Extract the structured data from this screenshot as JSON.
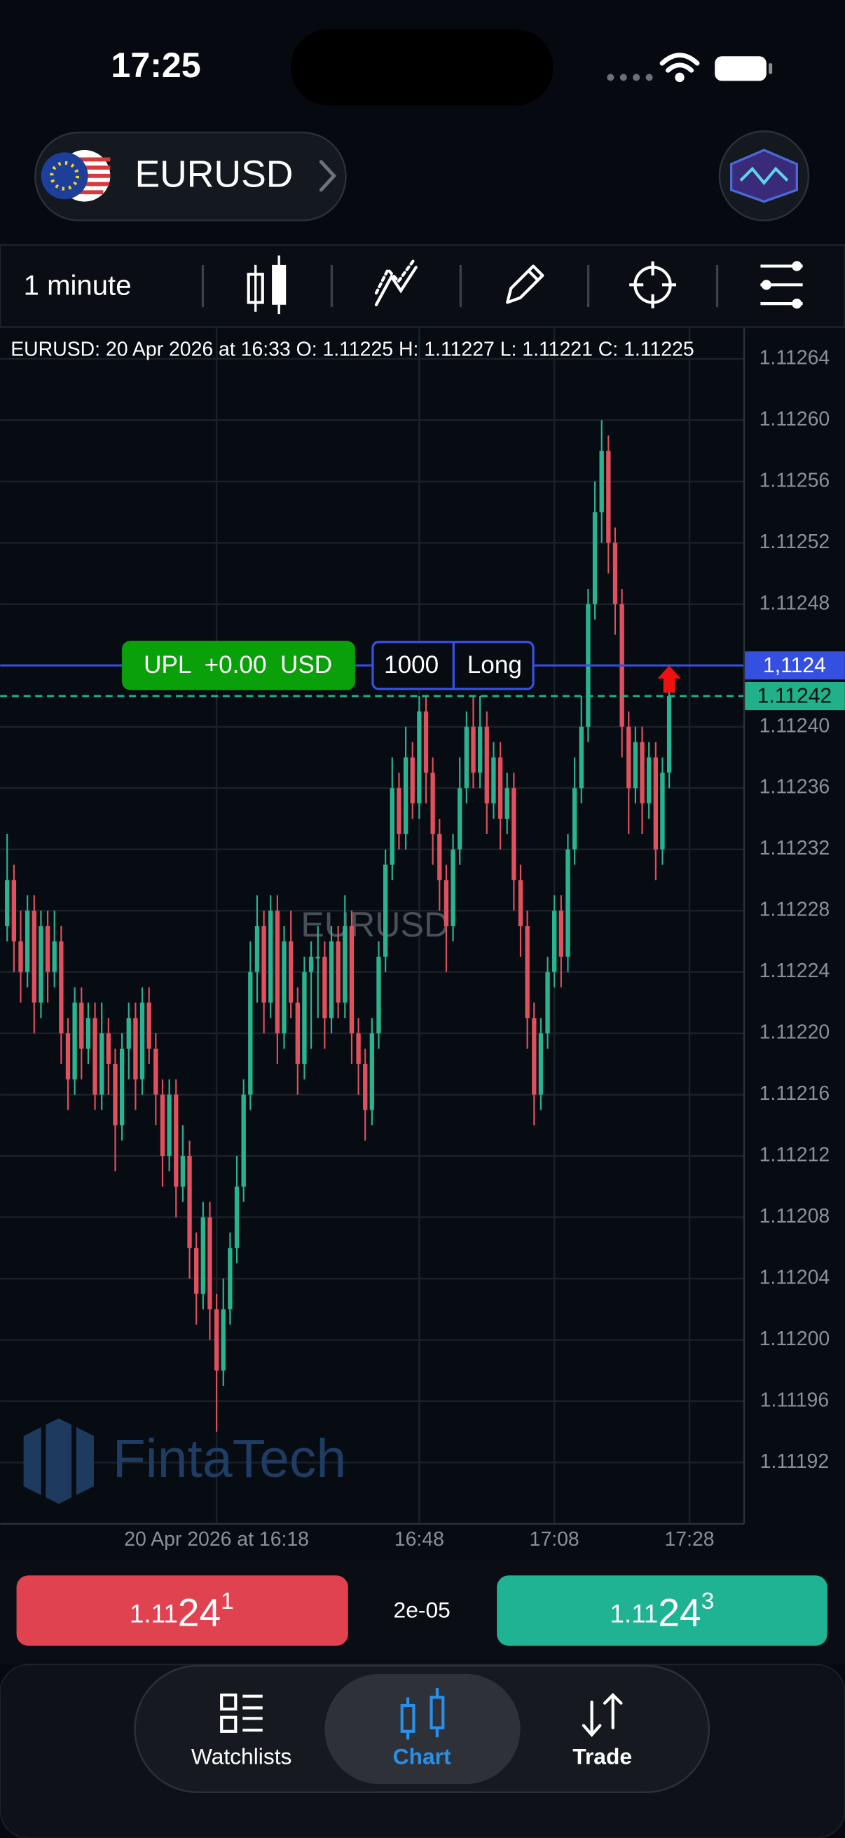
{
  "status_bar": {
    "time": "17:25"
  },
  "header": {
    "symbol": "EURUSD"
  },
  "toolbar": {
    "interval": "1 minute"
  },
  "chart_data": {
    "type": "candlestick",
    "title": "EURUSD: 20 Apr 2026 at 16:33 O: 1.11225 H: 1.11227 L: 1.11221 C: 1.11225",
    "watermark": "EURUSD",
    "logo": "FintaTech",
    "up_color": "#2ab391",
    "down_color": "#e0505e",
    "grid": true,
    "ylim": [
      1.11188,
      1.11266
    ],
    "yticks": [
      1.11264,
      {
        "value": 1.1126,
        "label": "1.11260"
      },
      1.11256,
      1.11252,
      1.11248,
      {
        "value": 1.1124,
        "label": "1.11240"
      },
      1.11236,
      1.11232,
      1.11228,
      1.11224,
      {
        "value": 1.1122,
        "label": "1.11220"
      },
      1.11216,
      1.11212,
      1.11208,
      1.11204,
      {
        "value": 1.112,
        "label": "1.11200"
      },
      1.11196,
      1.11192
    ],
    "xticks": [
      {
        "value": "16:18",
        "label": "20 Apr 2026 at 16:18"
      },
      "16:48",
      "17:08",
      "17:28"
    ],
    "x": [
      "15:47",
      "15:48",
      "15:49",
      "15:50",
      "15:51",
      "15:52",
      "15:53",
      "15:54",
      "15:55",
      "15:56",
      "15:57",
      "15:58",
      "15:59",
      "16:00",
      "16:01",
      "16:02",
      "16:03",
      "16:04",
      "16:05",
      "16:06",
      "16:07",
      "16:08",
      "16:09",
      "16:10",
      "16:11",
      "16:12",
      "16:13",
      "16:14",
      "16:15",
      "16:16",
      "16:17",
      "16:18",
      "16:19",
      "16:20",
      "16:21",
      "16:22",
      "16:23",
      "16:24",
      "16:25",
      "16:26",
      "16:27",
      "16:28",
      "16:29",
      "16:30",
      "16:31",
      "16:32",
      "16:33",
      "16:34",
      "16:35",
      "16:36",
      "16:37",
      "16:38",
      "16:39",
      "16:40",
      "16:41",
      "16:42",
      "16:43",
      "16:44",
      "16:45",
      "16:46",
      "16:47",
      "16:48",
      "16:49",
      "16:50",
      "16:51",
      "16:52",
      "16:53",
      "16:54",
      "16:55",
      "16:56",
      "16:57",
      "16:58",
      "16:59",
      "17:00",
      "17:01",
      "17:02",
      "17:03",
      "17:04",
      "17:05",
      "17:06",
      "17:07",
      "17:08",
      "17:09",
      "17:10",
      "17:11",
      "17:12",
      "17:13",
      "17:14",
      "17:15",
      "17:16",
      "17:17",
      "17:18",
      "17:19",
      "17:20",
      "17:21",
      "17:22",
      "17:23",
      "17:24",
      "17:25"
    ],
    "ohlc": [
      [
        1.11227,
        1.11233,
        1.11226,
        1.1123
      ],
      [
        1.1123,
        1.11231,
        1.11224,
        1.11226
      ],
      [
        1.11226,
        1.11228,
        1.11222,
        1.11224
      ],
      [
        1.11224,
        1.11229,
        1.11223,
        1.11228
      ],
      [
        1.11228,
        1.11229,
        1.1122,
        1.11222
      ],
      [
        1.11222,
        1.11228,
        1.11221,
        1.11227
      ],
      [
        1.11227,
        1.11228,
        1.11222,
        1.11224
      ],
      [
        1.11224,
        1.11228,
        1.11223,
        1.11226
      ],
      [
        1.11226,
        1.11227,
        1.11218,
        1.1122
      ],
      [
        1.1122,
        1.11221,
        1.11215,
        1.11217
      ],
      [
        1.11217,
        1.11223,
        1.11216,
        1.11222
      ],
      [
        1.11222,
        1.11223,
        1.11217,
        1.11219
      ],
      [
        1.11219,
        1.11222,
        1.11218,
        1.11221
      ],
      [
        1.11221,
        1.11222,
        1.11215,
        1.11216
      ],
      [
        1.11216,
        1.11222,
        1.11215,
        1.1122
      ],
      [
        1.1122,
        1.11221,
        1.11216,
        1.11218
      ],
      [
        1.11218,
        1.11219,
        1.11211,
        1.11214
      ],
      [
        1.11214,
        1.1122,
        1.11213,
        1.11219
      ],
      [
        1.11219,
        1.11222,
        1.11217,
        1.11221
      ],
      [
        1.11221,
        1.11222,
        1.11215,
        1.11217
      ],
      [
        1.11217,
        1.11223,
        1.11216,
        1.11222
      ],
      [
        1.11222,
        1.11223,
        1.11218,
        1.11219
      ],
      [
        1.11219,
        1.1122,
        1.11214,
        1.11216
      ],
      [
        1.11216,
        1.11217,
        1.1121,
        1.11212
      ],
      [
        1.11212,
        1.11217,
        1.11211,
        1.11216
      ],
      [
        1.11216,
        1.11217,
        1.11208,
        1.1121
      ],
      [
        1.1121,
        1.11214,
        1.11209,
        1.11212
      ],
      [
        1.11212,
        1.11213,
        1.11204,
        1.11206
      ],
      [
        1.11206,
        1.11207,
        1.11201,
        1.11203
      ],
      [
        1.11203,
        1.11209,
        1.11202,
        1.11208
      ],
      [
        1.11208,
        1.11209,
        1.112,
        1.11202
      ],
      [
        1.11202,
        1.11203,
        1.11194,
        1.11198
      ],
      [
        1.11198,
        1.11204,
        1.11197,
        1.11202
      ],
      [
        1.11202,
        1.11207,
        1.11201,
        1.11206
      ],
      [
        1.11206,
        1.11212,
        1.11205,
        1.1121
      ],
      [
        1.1121,
        1.11217,
        1.11209,
        1.11216
      ],
      [
        1.11216,
        1.11226,
        1.11215,
        1.11224
      ],
      [
        1.11224,
        1.11229,
        1.11222,
        1.11227
      ],
      [
        1.11227,
        1.11228,
        1.1122,
        1.11222
      ],
      [
        1.11222,
        1.11229,
        1.11221,
        1.11228
      ],
      [
        1.11228,
        1.11229,
        1.11218,
        1.1122
      ],
      [
        1.1122,
        1.11227,
        1.11219,
        1.11226
      ],
      [
        1.11226,
        1.11228,
        1.11221,
        1.11222
      ],
      [
        1.11222,
        1.11223,
        1.11216,
        1.11218
      ],
      [
        1.11218,
        1.11225,
        1.11217,
        1.11224
      ],
      [
        1.11224,
        1.11226,
        1.11219,
        1.11225
      ],
      [
        1.11225,
        1.11227,
        1.11221,
        1.11225
      ],
      [
        1.11225,
        1.11226,
        1.11219,
        1.11221
      ],
      [
        1.11221,
        1.11227,
        1.1122,
        1.11226
      ],
      [
        1.11226,
        1.11227,
        1.11221,
        1.11222
      ],
      [
        1.11222,
        1.11229,
        1.11221,
        1.11227
      ],
      [
        1.11227,
        1.11228,
        1.11218,
        1.1122
      ],
      [
        1.1122,
        1.11221,
        1.11216,
        1.11218
      ],
      [
        1.11218,
        1.11219,
        1.11213,
        1.11215
      ],
      [
        1.11215,
        1.11221,
        1.11214,
        1.1122
      ],
      [
        1.1122,
        1.11226,
        1.11219,
        1.11225
      ],
      [
        1.11225,
        1.11232,
        1.11224,
        1.11231
      ],
      [
        1.11231,
        1.11238,
        1.1123,
        1.11236
      ],
      [
        1.11236,
        1.11237,
        1.11232,
        1.11233
      ],
      [
        1.11233,
        1.1124,
        1.11232,
        1.11238
      ],
      [
        1.11238,
        1.11239,
        1.11234,
        1.11235
      ],
      [
        1.11235,
        1.11242,
        1.11234,
        1.11241
      ],
      [
        1.11241,
        1.11242,
        1.11235,
        1.11237
      ],
      [
        1.11237,
        1.11238,
        1.11231,
        1.11233
      ],
      [
        1.11233,
        1.11234,
        1.11228,
        1.1123
      ],
      [
        1.1123,
        1.11231,
        1.11224,
        1.11227
      ],
      [
        1.11227,
        1.11233,
        1.11226,
        1.11232
      ],
      [
        1.11232,
        1.11238,
        1.11231,
        1.11236
      ],
      [
        1.11236,
        1.11241,
        1.11235,
        1.1124
      ],
      [
        1.1124,
        1.11242,
        1.11236,
        1.11237
      ],
      [
        1.11237,
        1.11242,
        1.11236,
        1.1124
      ],
      [
        1.1124,
        1.11241,
        1.11233,
        1.11235
      ],
      [
        1.11235,
        1.11239,
        1.11234,
        1.11238
      ],
      [
        1.11238,
        1.11239,
        1.11232,
        1.11234
      ],
      [
        1.11234,
        1.11237,
        1.11233,
        1.11236
      ],
      [
        1.11236,
        1.11237,
        1.11228,
        1.1123
      ],
      [
        1.1123,
        1.11231,
        1.11225,
        1.11227
      ],
      [
        1.11227,
        1.11228,
        1.11219,
        1.11221
      ],
      [
        1.11221,
        1.11222,
        1.11214,
        1.11216
      ],
      [
        1.11216,
        1.11221,
        1.11215,
        1.1122
      ],
      [
        1.1122,
        1.11225,
        1.11219,
        1.11224
      ],
      [
        1.11224,
        1.11229,
        1.11223,
        1.11228
      ],
      [
        1.11228,
        1.11229,
        1.11223,
        1.11225
      ],
      [
        1.11225,
        1.11233,
        1.11224,
        1.11232
      ],
      [
        1.11232,
        1.11238,
        1.11231,
        1.11236
      ],
      [
        1.11236,
        1.11242,
        1.11235,
        1.1124
      ],
      [
        1.1124,
        1.11249,
        1.11239,
        1.11248
      ],
      [
        1.11248,
        1.11256,
        1.11247,
        1.11254
      ],
      [
        1.11254,
        1.1126,
        1.11252,
        1.11258
      ],
      [
        1.11258,
        1.11259,
        1.1125,
        1.11252
      ],
      [
        1.11252,
        1.11253,
        1.11246,
        1.11248
      ],
      [
        1.11248,
        1.11249,
        1.11238,
        1.1124
      ],
      [
        1.1124,
        1.11241,
        1.11233,
        1.11236
      ],
      [
        1.11236,
        1.1124,
        1.11235,
        1.11239
      ],
      [
        1.11239,
        1.1124,
        1.11233,
        1.11235
      ],
      [
        1.11235,
        1.11239,
        1.11234,
        1.11238
      ],
      [
        1.11238,
        1.11239,
        1.1123,
        1.11232
      ],
      [
        1.11232,
        1.11238,
        1.11231,
        1.11237
      ],
      [
        1.11237,
        1.11243,
        1.11236,
        1.11242
      ]
    ],
    "lines": [
      {
        "value": 1.11244,
        "label": "1,1124",
        "color": "#3550e0",
        "text_color": "#ffffff",
        "dashed": false
      },
      {
        "value": 1.11242,
        "label": "1.11242",
        "color": "#22b08a",
        "text_color": "#06140f",
        "dashed": true
      }
    ],
    "position": {
      "upl": "UPL  +0.00  USD",
      "quantity": "1000",
      "side": "Long"
    }
  },
  "quote": {
    "bid": {
      "prefix": "1.11",
      "big": "24",
      "sup": "1"
    },
    "spread": "2e-05",
    "ask": {
      "prefix": "1.11",
      "big": "24",
      "sup": "3"
    }
  },
  "nav": [
    {
      "label": "Watchlists"
    },
    {
      "label": "Chart"
    },
    {
      "label": "Trade"
    }
  ]
}
